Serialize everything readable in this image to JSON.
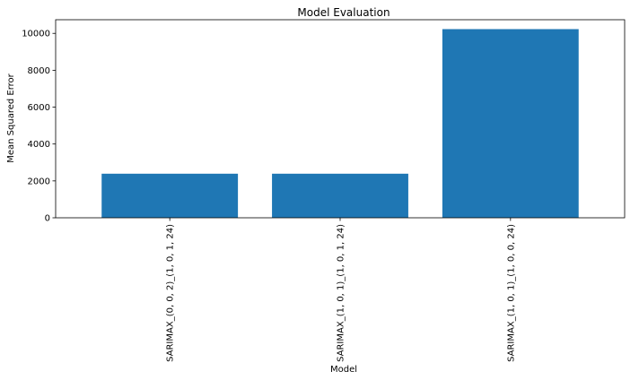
{
  "chart_data": {
    "type": "bar",
    "title": "Model Evaluation",
    "xlabel": "Model",
    "ylabel": "Mean Squared Error",
    "categories": [
      "SARIMAX_(0, 0, 2)_(1, 0, 1, 24)",
      "SARIMAX_(1, 0, 1)_(1, 0, 1, 24)",
      "SARIMAX_(1, 0, 1)_(1, 0, 0, 24)"
    ],
    "values": [
      2390,
      2390,
      10230
    ],
    "ylim": [
      0,
      10740
    ],
    "yticks": [
      0,
      2000,
      4000,
      6000,
      8000,
      10000
    ],
    "bar_color": "#1f77b4",
    "grid": false,
    "legend": false
  }
}
